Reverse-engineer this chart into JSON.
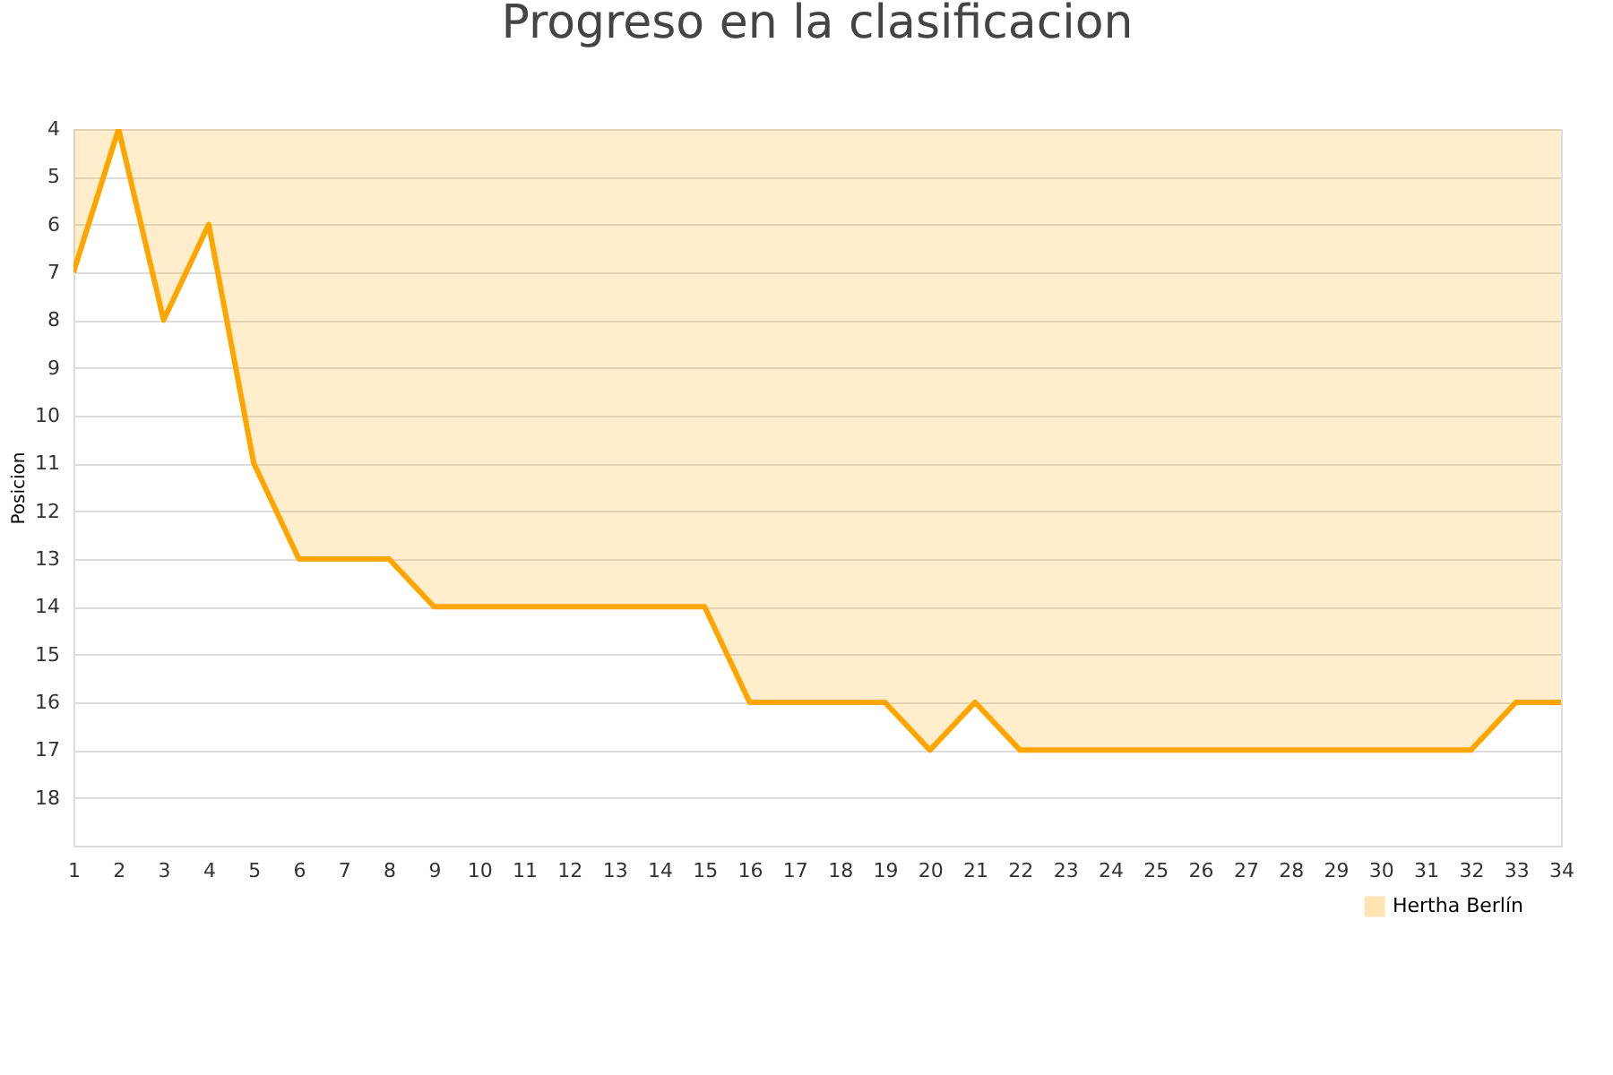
{
  "chart_data": {
    "type": "area",
    "title": "Progreso en la clasificacion",
    "ylabel": "Posicion",
    "x": [
      1,
      2,
      3,
      4,
      5,
      6,
      7,
      8,
      9,
      10,
      11,
      12,
      13,
      14,
      15,
      16,
      17,
      18,
      19,
      20,
      21,
      22,
      23,
      24,
      25,
      26,
      27,
      28,
      29,
      30,
      31,
      32,
      33,
      34
    ],
    "series": [
      {
        "name": "Hertha Berlín",
        "color": "#ffa500",
        "values": [
          7,
          4,
          8,
          6,
          11,
          13,
          13,
          13,
          14,
          14,
          14,
          14,
          14,
          14,
          14,
          16,
          16,
          16,
          16,
          17,
          16,
          17,
          17,
          17,
          17,
          17,
          17,
          17,
          17,
          17,
          17,
          17,
          16,
          16
        ]
      }
    ],
    "xlim": [
      1,
      34
    ],
    "xticks": [
      1,
      2,
      3,
      4,
      5,
      6,
      7,
      8,
      9,
      10,
      11,
      12,
      13,
      14,
      15,
      16,
      17,
      18,
      19,
      20,
      21,
      22,
      23,
      24,
      25,
      26,
      27,
      28,
      29,
      30,
      31,
      32,
      33,
      34
    ],
    "ylim": [
      19,
      4
    ],
    "yticks": [
      4,
      5,
      6,
      7,
      8,
      9,
      10,
      11,
      12,
      13,
      14,
      15,
      16,
      17,
      18
    ],
    "grid": "y",
    "legend": "bottom right"
  }
}
